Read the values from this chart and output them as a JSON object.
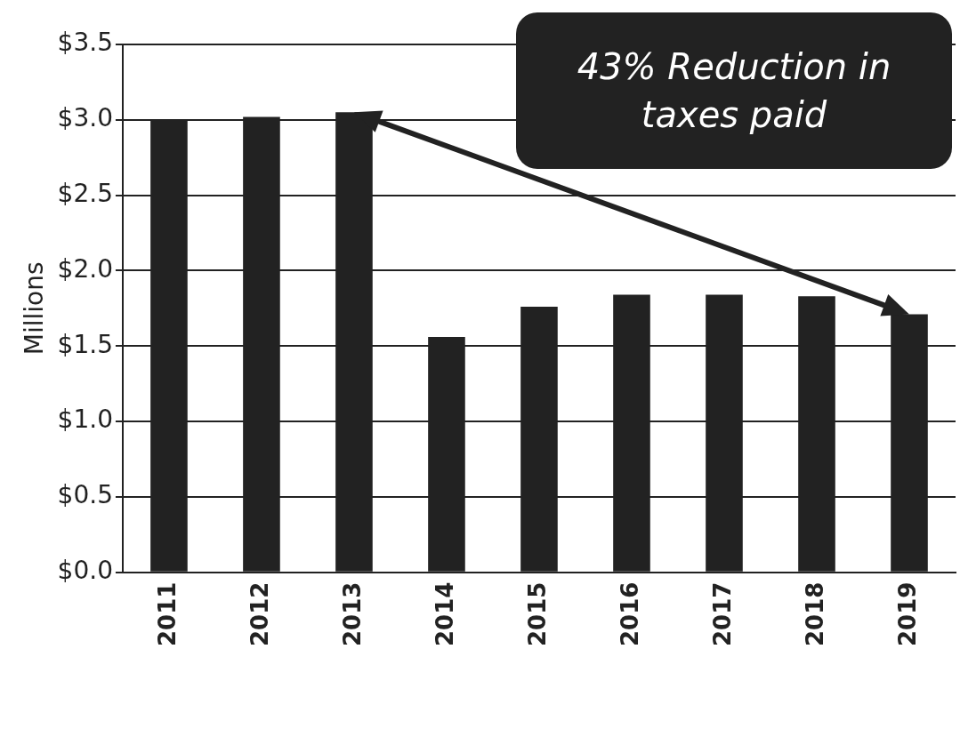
{
  "chart_data": {
    "type": "bar",
    "ylabel": "Millions",
    "categories": [
      "2011",
      "2012",
      "2013",
      "2014",
      "2015",
      "2016",
      "2017",
      "2018",
      "2019"
    ],
    "values": [
      3.0,
      3.02,
      3.05,
      1.56,
      1.76,
      1.84,
      1.84,
      1.83,
      1.71
    ],
    "color": "#222222",
    "ylim": [
      0,
      3.5
    ],
    "yticks": [
      {
        "value": 0,
        "label": "$0.0"
      },
      {
        "value": 0.5,
        "label": "$0.5"
      },
      {
        "value": 1,
        "label": "$1.0"
      },
      {
        "value": 1.5,
        "label": "$1.5"
      },
      {
        "value": 2,
        "label": "$2.0"
      },
      {
        "value": 2.5,
        "label": "$2.5"
      },
      {
        "value": 3,
        "label": "$3.0"
      },
      {
        "value": 3.5,
        "label": "$3.5"
      }
    ],
    "grid": "y",
    "legend": false,
    "annotations": [
      "43% Reduction in taxes paid"
    ]
  }
}
